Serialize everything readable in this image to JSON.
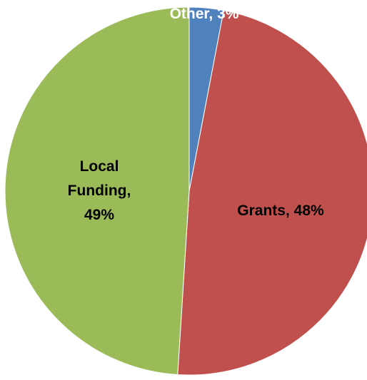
{
  "chart_data": {
    "type": "pie",
    "title": "",
    "slices": [
      {
        "name": "Other",
        "value": 3,
        "color": "#4f81bd",
        "label_lines": [
          "Other, 3%"
        ],
        "label_color": "#ffffff"
      },
      {
        "name": "Grants",
        "value": 48,
        "color": "#c0504d",
        "label_lines": [
          "Grants, 48%"
        ],
        "label_color": "#000000"
      },
      {
        "name": "Local Funding",
        "value": 49,
        "color": "#9bbb59",
        "label_lines": [
          "Local",
          "Funding,",
          "49%"
        ],
        "label_color": "#000000"
      }
    ],
    "legend": "none",
    "start_angle": "12 o'clock",
    "direction": "clockwise"
  }
}
